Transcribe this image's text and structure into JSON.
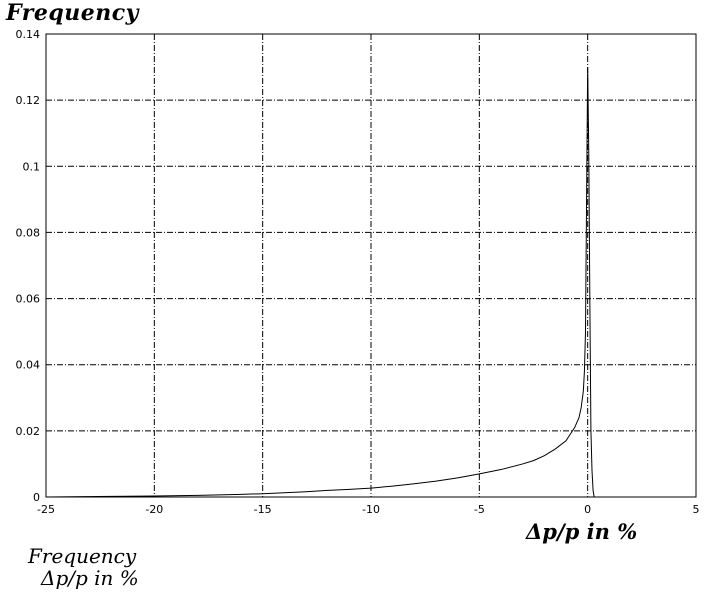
{
  "chart_data": {
    "type": "line",
    "title": "",
    "ylabel": "Frequency",
    "xlabel": "Δp/p in %",
    "footer_lines": [
      "Frequency",
      "Δp/p in %"
    ],
    "xlim": [
      -25,
      5
    ],
    "ylim": [
      0,
      0.14
    ],
    "grid": true,
    "xticks": [
      -25,
      -20,
      -15,
      -10,
      -5,
      0,
      5
    ],
    "xtick_labels": [
      "-25",
      "-20",
      "-15",
      "-10",
      "-5",
      "0",
      "5"
    ],
    "yticks": [
      0,
      0.02,
      0.04,
      0.06,
      0.08,
      0.1,
      0.12,
      0.14
    ],
    "ytick_labels": [
      "0",
      "0.02",
      "0.04",
      "0.06",
      "0.08",
      "0.1",
      "0.12",
      "0.14"
    ],
    "series": [
      {
        "x": [
          -25,
          -22,
          -20,
          -18,
          -16,
          -15,
          -14,
          -13,
          -12,
          -11,
          -10,
          -9,
          -8,
          -7,
          -6,
          -5,
          -4,
          -3,
          -2.5,
          -2,
          -1.5,
          -1,
          -0.8,
          -0.6,
          -0.4,
          -0.3,
          -0.2,
          -0.15,
          -0.1,
          -0.05,
          0,
          0.05,
          0.1,
          0.15,
          0.2,
          0.25,
          0.3
        ],
        "y": [
          0,
          0.0002,
          0.0003,
          0.0005,
          0.0008,
          0.001,
          0.0013,
          0.0016,
          0.002,
          0.0023,
          0.0027,
          0.0033,
          0.004,
          0.0048,
          0.0058,
          0.007,
          0.0083,
          0.01,
          0.011,
          0.0125,
          0.0145,
          0.017,
          0.019,
          0.021,
          0.024,
          0.027,
          0.032,
          0.038,
          0.05,
          0.09,
          0.13,
          0.105,
          0.06,
          0.02,
          0.008,
          0.002,
          0
        ]
      }
    ]
  }
}
